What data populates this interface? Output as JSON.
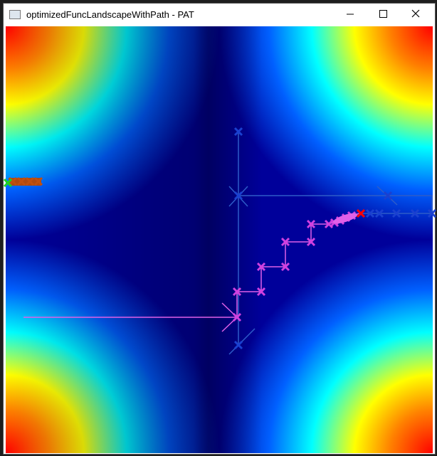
{
  "window": {
    "title": "optimizedFuncLandscapeWithPath - PAT"
  }
}
